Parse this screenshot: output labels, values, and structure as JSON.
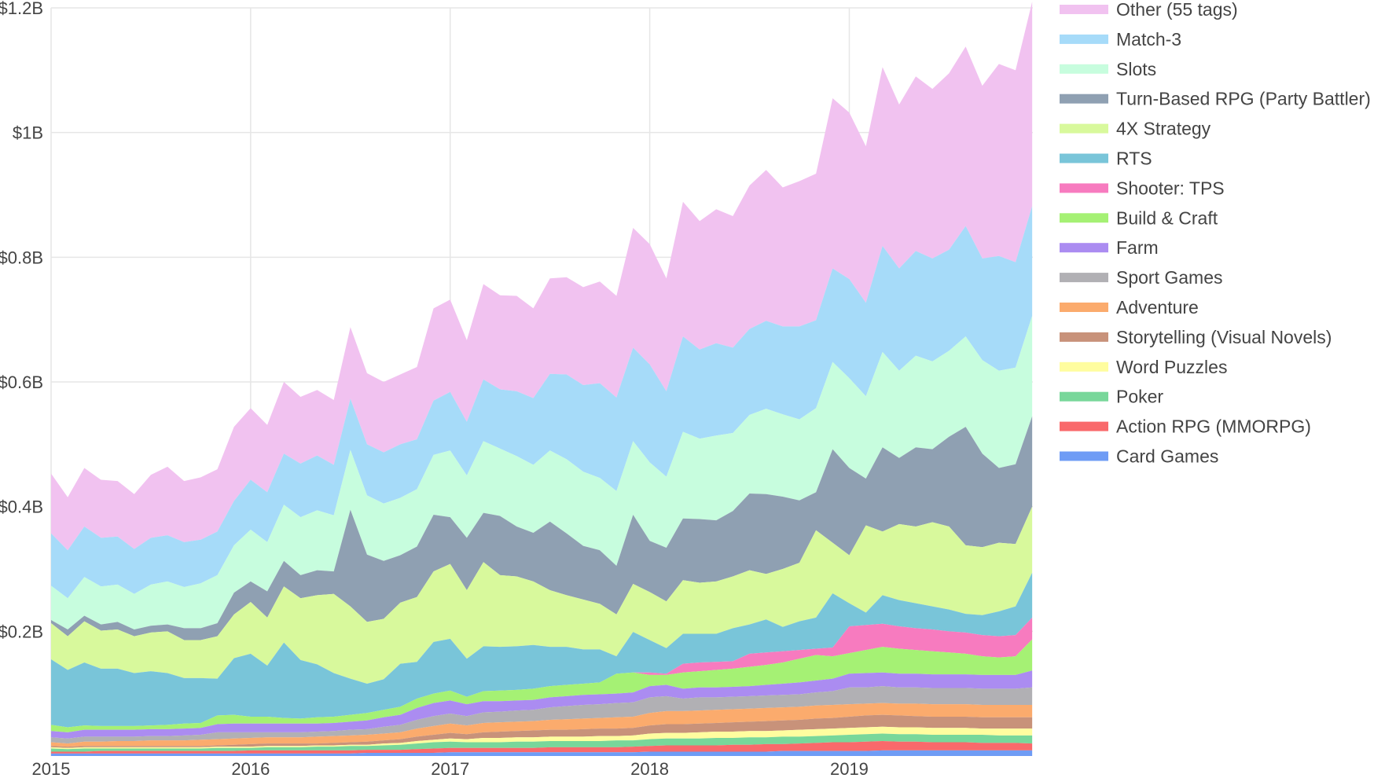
{
  "chart_data": {
    "type": "area",
    "stacked": true,
    "title": "",
    "xlabel": "",
    "ylabel": "",
    "x_start": 2015.0,
    "x_step": 0.0833333,
    "xlim": [
      2015.0,
      2019.92
    ],
    "ylim": [
      0,
      1.2
    ],
    "x_ticks": [
      {
        "value": 2015,
        "label": "2015"
      },
      {
        "value": 2016,
        "label": "2016"
      },
      {
        "value": 2017,
        "label": "2017"
      },
      {
        "value": 2018,
        "label": "2018"
      },
      {
        "value": 2019,
        "label": "2019"
      }
    ],
    "y_ticks": [
      {
        "value": 0.2,
        "label": "$0.2B"
      },
      {
        "value": 0.4,
        "label": "$0.4B"
      },
      {
        "value": 0.6,
        "label": "$0.6B"
      },
      {
        "value": 0.8,
        "label": "$0.8B"
      },
      {
        "value": 1.0,
        "label": "$1B"
      },
      {
        "value": 1.2,
        "label": "$1.2B"
      }
    ],
    "value_unit": "billion USD (cumulative stacked boundaries)",
    "series": [
      {
        "name": "Card Games",
        "color": "#6f9cf5",
        "values": [
          0.004,
          0.004,
          0.004,
          0.004,
          0.004,
          0.004,
          0.004,
          0.004,
          0.004,
          0.004,
          0.004,
          0.004,
          0.004,
          0.004,
          0.004,
          0.004,
          0.004,
          0.004,
          0.004,
          0.005,
          0.005,
          0.005,
          0.005,
          0.005,
          0.006,
          0.006,
          0.006,
          0.006,
          0.006,
          0.006,
          0.006,
          0.006,
          0.006,
          0.006,
          0.006,
          0.006,
          0.007,
          0.007,
          0.007,
          0.007,
          0.007,
          0.007,
          0.007,
          0.007,
          0.008,
          0.008,
          0.008,
          0.008,
          0.008,
          0.008,
          0.009,
          0.009,
          0.009,
          0.009,
          0.009,
          0.009,
          0.009,
          0.009,
          0.009,
          0.009
        ]
      },
      {
        "name": "Action RPG (MMORPG)",
        "color": "#f9696b",
        "values": [
          0.007,
          0.007,
          0.007,
          0.008,
          0.008,
          0.008,
          0.008,
          0.008,
          0.008,
          0.008,
          0.008,
          0.008,
          0.009,
          0.009,
          0.009,
          0.009,
          0.009,
          0.009,
          0.009,
          0.01,
          0.01,
          0.01,
          0.011,
          0.012,
          0.013,
          0.013,
          0.013,
          0.013,
          0.013,
          0.013,
          0.014,
          0.014,
          0.014,
          0.014,
          0.014,
          0.015,
          0.016,
          0.017,
          0.017,
          0.017,
          0.017,
          0.018,
          0.018,
          0.019,
          0.019,
          0.02,
          0.021,
          0.022,
          0.022,
          0.023,
          0.024,
          0.023,
          0.023,
          0.022,
          0.022,
          0.022,
          0.021,
          0.021,
          0.021,
          0.02
        ]
      },
      {
        "name": "Poker",
        "color": "#78d79a",
        "values": [
          0.012,
          0.011,
          0.012,
          0.012,
          0.012,
          0.012,
          0.012,
          0.012,
          0.012,
          0.012,
          0.013,
          0.013,
          0.013,
          0.014,
          0.014,
          0.014,
          0.015,
          0.015,
          0.016,
          0.016,
          0.017,
          0.018,
          0.02,
          0.022,
          0.023,
          0.022,
          0.022,
          0.022,
          0.023,
          0.023,
          0.024,
          0.024,
          0.024,
          0.024,
          0.025,
          0.025,
          0.027,
          0.028,
          0.028,
          0.028,
          0.029,
          0.029,
          0.03,
          0.03,
          0.031,
          0.031,
          0.032,
          0.033,
          0.034,
          0.035,
          0.036,
          0.035,
          0.035,
          0.034,
          0.034,
          0.034,
          0.034,
          0.033,
          0.033,
          0.033
        ]
      },
      {
        "name": "Word Puzzles",
        "color": "#fffd9f",
        "values": [
          0.014,
          0.013,
          0.014,
          0.014,
          0.014,
          0.014,
          0.014,
          0.014,
          0.014,
          0.014,
          0.015,
          0.015,
          0.015,
          0.016,
          0.016,
          0.016,
          0.017,
          0.017,
          0.018,
          0.018,
          0.02,
          0.021,
          0.024,
          0.026,
          0.028,
          0.027,
          0.029,
          0.029,
          0.03,
          0.03,
          0.031,
          0.031,
          0.031,
          0.032,
          0.032,
          0.033,
          0.036,
          0.037,
          0.037,
          0.038,
          0.039,
          0.039,
          0.04,
          0.04,
          0.041,
          0.042,
          0.043,
          0.044,
          0.045,
          0.046,
          0.047,
          0.046,
          0.046,
          0.045,
          0.045,
          0.045,
          0.044,
          0.044,
          0.044,
          0.044
        ]
      },
      {
        "name": "Storytelling (Visual Novels)",
        "color": "#c8927a",
        "values": [
          0.016,
          0.015,
          0.016,
          0.016,
          0.016,
          0.016,
          0.016,
          0.016,
          0.016,
          0.016,
          0.017,
          0.018,
          0.019,
          0.02,
          0.02,
          0.02,
          0.02,
          0.021,
          0.022,
          0.023,
          0.025,
          0.027,
          0.031,
          0.034,
          0.037,
          0.035,
          0.038,
          0.039,
          0.04,
          0.041,
          0.042,
          0.042,
          0.043,
          0.044,
          0.044,
          0.045,
          0.049,
          0.051,
          0.051,
          0.052,
          0.053,
          0.054,
          0.055,
          0.056,
          0.057,
          0.058,
          0.06,
          0.061,
          0.063,
          0.065,
          0.066,
          0.065,
          0.064,
          0.063,
          0.063,
          0.063,
          0.062,
          0.062,
          0.062,
          0.062
        ]
      },
      {
        "name": "Adventure",
        "color": "#fbab6d",
        "values": [
          0.022,
          0.02,
          0.023,
          0.023,
          0.024,
          0.024,
          0.025,
          0.025,
          0.025,
          0.026,
          0.027,
          0.028,
          0.029,
          0.03,
          0.03,
          0.03,
          0.031,
          0.032,
          0.033,
          0.034,
          0.036,
          0.038,
          0.044,
          0.048,
          0.052,
          0.049,
          0.053,
          0.054,
          0.055,
          0.056,
          0.058,
          0.059,
          0.06,
          0.061,
          0.062,
          0.063,
          0.069,
          0.072,
          0.072,
          0.073,
          0.074,
          0.075,
          0.076,
          0.077,
          0.078,
          0.079,
          0.081,
          0.082,
          0.083,
          0.084,
          0.085,
          0.084,
          0.084,
          0.083,
          0.083,
          0.083,
          0.082,
          0.082,
          0.082,
          0.082
        ]
      },
      {
        "name": "Sport Games",
        "color": "#b1b0b4",
        "values": [
          0.03,
          0.028,
          0.031,
          0.031,
          0.031,
          0.031,
          0.032,
          0.032,
          0.033,
          0.034,
          0.038,
          0.038,
          0.038,
          0.038,
          0.038,
          0.038,
          0.039,
          0.04,
          0.042,
          0.043,
          0.047,
          0.05,
          0.058,
          0.064,
          0.068,
          0.064,
          0.07,
          0.071,
          0.073,
          0.074,
          0.078,
          0.08,
          0.082,
          0.083,
          0.085,
          0.086,
          0.094,
          0.096,
          0.092,
          0.094,
          0.094,
          0.095,
          0.096,
          0.097,
          0.098,
          0.099,
          0.102,
          0.104,
          0.11,
          0.11,
          0.112,
          0.11,
          0.11,
          0.109,
          0.109,
          0.109,
          0.108,
          0.108,
          0.108,
          0.11
        ]
      },
      {
        "name": "Farm",
        "color": "#ab8cf1",
        "values": [
          0.04,
          0.038,
          0.042,
          0.042,
          0.042,
          0.042,
          0.043,
          0.043,
          0.044,
          0.045,
          0.051,
          0.052,
          0.052,
          0.052,
          0.052,
          0.052,
          0.052,
          0.053,
          0.055,
          0.057,
          0.062,
          0.066,
          0.077,
          0.085,
          0.089,
          0.083,
          0.088,
          0.088,
          0.089,
          0.09,
          0.094,
          0.096,
          0.098,
          0.099,
          0.1,
          0.102,
          0.112,
          0.114,
          0.108,
          0.11,
          0.11,
          0.111,
          0.112,
          0.114,
          0.116,
          0.118,
          0.121,
          0.124,
          0.132,
          0.133,
          0.134,
          0.132,
          0.132,
          0.131,
          0.131,
          0.131,
          0.13,
          0.13,
          0.13,
          0.137
        ]
      },
      {
        "name": "Build & Craft",
        "color": "#a5f174",
        "values": [
          0.05,
          0.046,
          0.049,
          0.048,
          0.048,
          0.048,
          0.049,
          0.05,
          0.052,
          0.053,
          0.065,
          0.066,
          0.063,
          0.063,
          0.061,
          0.06,
          0.062,
          0.063,
          0.066,
          0.069,
          0.074,
          0.079,
          0.092,
          0.1,
          0.105,
          0.095,
          0.104,
          0.105,
          0.106,
          0.108,
          0.112,
          0.114,
          0.116,
          0.118,
          0.132,
          0.134,
          0.13,
          0.13,
          0.134,
          0.136,
          0.138,
          0.14,
          0.143,
          0.146,
          0.15,
          0.156,
          0.162,
          0.16,
          0.165,
          0.17,
          0.175,
          0.172,
          0.17,
          0.168,
          0.166,
          0.164,
          0.16,
          0.158,
          0.16,
          0.187
        ]
      },
      {
        "name": "Shooter: TPS",
        "color": "#f77bbf",
        "values": [
          0.05,
          0.046,
          0.049,
          0.048,
          0.048,
          0.048,
          0.049,
          0.05,
          0.052,
          0.053,
          0.065,
          0.066,
          0.063,
          0.063,
          0.061,
          0.06,
          0.062,
          0.063,
          0.066,
          0.069,
          0.074,
          0.079,
          0.092,
          0.1,
          0.105,
          0.095,
          0.104,
          0.105,
          0.106,
          0.108,
          0.112,
          0.114,
          0.116,
          0.118,
          0.132,
          0.134,
          0.134,
          0.132,
          0.148,
          0.15,
          0.151,
          0.152,
          0.164,
          0.166,
          0.168,
          0.17,
          0.172,
          0.174,
          0.208,
          0.21,
          0.212,
          0.208,
          0.205,
          0.203,
          0.2,
          0.198,
          0.194,
          0.192,
          0.194,
          0.222
        ]
      },
      {
        "name": "RTS",
        "color": "#79c5d9",
        "values": [
          0.155,
          0.138,
          0.15,
          0.14,
          0.14,
          0.133,
          0.136,
          0.133,
          0.125,
          0.125,
          0.124,
          0.157,
          0.164,
          0.145,
          0.182,
          0.154,
          0.147,
          0.133,
          0.124,
          0.116,
          0.123,
          0.148,
          0.151,
          0.183,
          0.188,
          0.156,
          0.176,
          0.175,
          0.176,
          0.178,
          0.175,
          0.175,
          0.171,
          0.171,
          0.16,
          0.199,
          0.186,
          0.173,
          0.196,
          0.196,
          0.196,
          0.205,
          0.211,
          0.219,
          0.207,
          0.216,
          0.222,
          0.261,
          0.245,
          0.23,
          0.258,
          0.25,
          0.245,
          0.24,
          0.235,
          0.228,
          0.226,
          0.232,
          0.24,
          0.294
        ]
      },
      {
        "name": "4X Strategy",
        "color": "#d8f99c",
        "values": [
          0.213,
          0.192,
          0.216,
          0.201,
          0.203,
          0.192,
          0.198,
          0.2,
          0.186,
          0.186,
          0.192,
          0.227,
          0.247,
          0.222,
          0.272,
          0.253,
          0.258,
          0.26,
          0.24,
          0.215,
          0.22,
          0.246,
          0.255,
          0.296,
          0.308,
          0.266,
          0.311,
          0.29,
          0.288,
          0.28,
          0.266,
          0.258,
          0.251,
          0.244,
          0.227,
          0.276,
          0.263,
          0.248,
          0.282,
          0.278,
          0.28,
          0.288,
          0.298,
          0.292,
          0.3,
          0.31,
          0.362,
          0.342,
          0.322,
          0.37,
          0.36,
          0.372,
          0.368,
          0.375,
          0.368,
          0.338,
          0.335,
          0.342,
          0.34,
          0.4
        ]
      },
      {
        "name": "Turn-Based RPG (Party Battler)",
        "color": "#8fa0b2",
        "values": [
          0.218,
          0.203,
          0.225,
          0.211,
          0.215,
          0.203,
          0.209,
          0.211,
          0.205,
          0.205,
          0.213,
          0.262,
          0.28,
          0.264,
          0.313,
          0.29,
          0.298,
          0.296,
          0.395,
          0.323,
          0.313,
          0.322,
          0.336,
          0.387,
          0.383,
          0.35,
          0.39,
          0.385,
          0.368,
          0.358,
          0.376,
          0.357,
          0.337,
          0.33,
          0.305,
          0.387,
          0.345,
          0.334,
          0.381,
          0.38,
          0.378,
          0.393,
          0.421,
          0.42,
          0.416,
          0.41,
          0.423,
          0.492,
          0.462,
          0.445,
          0.495,
          0.478,
          0.495,
          0.492,
          0.512,
          0.528,
          0.485,
          0.462,
          0.468,
          0.545
        ]
      },
      {
        "name": "Slots",
        "color": "#c7fdde",
        "values": [
          0.273,
          0.253,
          0.287,
          0.272,
          0.275,
          0.26,
          0.275,
          0.28,
          0.271,
          0.277,
          0.29,
          0.338,
          0.363,
          0.343,
          0.403,
          0.383,
          0.394,
          0.386,
          0.491,
          0.418,
          0.405,
          0.414,
          0.428,
          0.483,
          0.49,
          0.45,
          0.505,
          0.493,
          0.481,
          0.467,
          0.49,
          0.476,
          0.456,
          0.446,
          0.425,
          0.505,
          0.471,
          0.448,
          0.52,
          0.509,
          0.514,
          0.518,
          0.547,
          0.557,
          0.548,
          0.54,
          0.558,
          0.632,
          0.606,
          0.577,
          0.648,
          0.618,
          0.642,
          0.633,
          0.65,
          0.673,
          0.635,
          0.618,
          0.623,
          0.706
        ]
      },
      {
        "name": "Match-3",
        "color": "#a6dbf9",
        "values": [
          0.357,
          0.33,
          0.368,
          0.35,
          0.352,
          0.332,
          0.35,
          0.354,
          0.343,
          0.347,
          0.36,
          0.409,
          0.443,
          0.423,
          0.485,
          0.469,
          0.482,
          0.467,
          0.573,
          0.5,
          0.487,
          0.5,
          0.508,
          0.57,
          0.584,
          0.536,
          0.604,
          0.588,
          0.585,
          0.574,
          0.613,
          0.612,
          0.595,
          0.598,
          0.575,
          0.655,
          0.628,
          0.585,
          0.673,
          0.652,
          0.662,
          0.655,
          0.685,
          0.698,
          0.689,
          0.689,
          0.699,
          0.782,
          0.765,
          0.727,
          0.818,
          0.782,
          0.81,
          0.798,
          0.812,
          0.85,
          0.798,
          0.802,
          0.792,
          0.882
        ]
      },
      {
        "name": "Other (55 tags)",
        "color": "#f1c2f0",
        "values": [
          0.453,
          0.415,
          0.462,
          0.443,
          0.441,
          0.42,
          0.451,
          0.464,
          0.441,
          0.447,
          0.46,
          0.528,
          0.558,
          0.531,
          0.6,
          0.576,
          0.587,
          0.571,
          0.688,
          0.614,
          0.6,
          0.612,
          0.624,
          0.718,
          0.732,
          0.667,
          0.757,
          0.739,
          0.738,
          0.718,
          0.766,
          0.768,
          0.752,
          0.761,
          0.738,
          0.847,
          0.821,
          0.766,
          0.889,
          0.858,
          0.877,
          0.866,
          0.915,
          0.94,
          0.912,
          0.922,
          0.934,
          1.055,
          1.032,
          0.978,
          1.105,
          1.045,
          1.09,
          1.07,
          1.095,
          1.138,
          1.075,
          1.11,
          1.1,
          1.21
        ]
      }
    ]
  }
}
